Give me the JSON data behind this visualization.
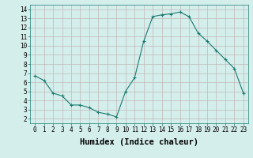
{
  "x": [
    0,
    1,
    2,
    3,
    4,
    5,
    6,
    7,
    8,
    9,
    10,
    11,
    12,
    13,
    14,
    15,
    16,
    17,
    18,
    19,
    20,
    21,
    22,
    23
  ],
  "y": [
    6.7,
    6.2,
    4.8,
    4.5,
    3.5,
    3.5,
    3.2,
    2.7,
    2.5,
    2.2,
    5.0,
    6.5,
    10.5,
    13.2,
    13.4,
    13.5,
    13.7,
    13.2,
    11.4,
    10.5,
    9.5,
    8.5,
    7.5,
    4.8
  ],
  "xlim": [
    -0.5,
    23.5
  ],
  "ylim": [
    1.5,
    14.5
  ],
  "xticks": [
    0,
    1,
    2,
    3,
    4,
    5,
    6,
    7,
    8,
    9,
    10,
    11,
    12,
    13,
    14,
    15,
    16,
    17,
    18,
    19,
    20,
    21,
    22,
    23
  ],
  "yticks": [
    2,
    3,
    4,
    5,
    6,
    7,
    8,
    9,
    10,
    11,
    12,
    13,
    14
  ],
  "xlabel": "Humidex (Indice chaleur)",
  "line_color": "#1a7a6e",
  "marker": "+",
  "bg_color": "#d4eeec",
  "grid_color": "#c0b8b8",
  "tick_label_fontsize": 5.5,
  "xlabel_fontsize": 7.5
}
